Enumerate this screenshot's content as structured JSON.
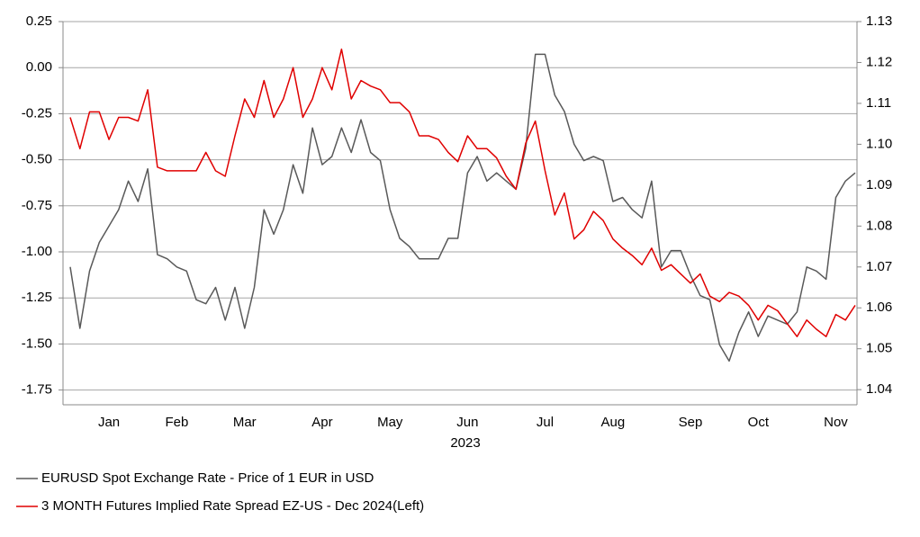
{
  "chart_data": {
    "type": "line",
    "categories": [
      null,
      null,
      null,
      null,
      "Jan",
      null,
      null,
      null,
      null,
      null,
      null,
      "Feb",
      null,
      null,
      null,
      null,
      null,
      null,
      "Mar",
      null,
      null,
      null,
      null,
      null,
      null,
      null,
      "Apr",
      null,
      null,
      null,
      null,
      null,
      null,
      "May",
      null,
      null,
      null,
      null,
      null,
      null,
      null,
      "Jun",
      null,
      null,
      null,
      null,
      null,
      null,
      null,
      "Jul",
      null,
      null,
      null,
      null,
      null,
      null,
      "Aug",
      null,
      null,
      null,
      null,
      null,
      null,
      null,
      "Sep",
      null,
      null,
      null,
      null,
      null,
      null,
      "Oct",
      null,
      null,
      null,
      null,
      null,
      null,
      null,
      "Nov",
      null,
      null
    ],
    "xlabel": "2023",
    "series": [
      {
        "name": "EURUSD Spot Exchange Rate - Price of 1 EUR in USD",
        "color": "#595959",
        "axis": "y2",
        "values": [
          1.07,
          1.055,
          1.069,
          1.076,
          1.08,
          1.084,
          1.091,
          1.086,
          1.094,
          1.073,
          1.072,
          1.07,
          1.069,
          1.062,
          1.061,
          1.065,
          1.057,
          1.065,
          1.055,
          1.065,
          1.084,
          1.078,
          1.084,
          1.095,
          1.088,
          1.104,
          1.095,
          1.097,
          1.104,
          1.098,
          1.106,
          1.098,
          1.096,
          1.084,
          1.077,
          1.075,
          1.072,
          1.072,
          1.072,
          1.077,
          1.077,
          1.093,
          1.097,
          1.091,
          1.093,
          1.091,
          1.089,
          1.099,
          1.122,
          1.122,
          1.112,
          1.108,
          1.1,
          1.096,
          1.097,
          1.096,
          1.086,
          1.087,
          1.084,
          1.082,
          1.091,
          1.07,
          1.074,
          1.074,
          1.068,
          1.063,
          1.062,
          1.051,
          1.047,
          1.054,
          1.059,
          1.053,
          1.058,
          1.057,
          1.056,
          1.059,
          1.07,
          1.069,
          1.067,
          1.087,
          1.091,
          1.093
        ]
      },
      {
        "name": "3 MONTH Futures Implied Rate Spread EZ-US - Dec 2024(Left)",
        "color": "#e00000",
        "axis": "y",
        "values": [
          -0.27,
          -0.44,
          -0.24,
          -0.24,
          -0.39,
          -0.27,
          -0.27,
          -0.29,
          -0.12,
          -0.54,
          -0.56,
          -0.56,
          -0.56,
          -0.56,
          -0.46,
          -0.56,
          -0.59,
          -0.37,
          -0.17,
          -0.27,
          -0.07,
          -0.27,
          -0.17,
          0.0,
          -0.27,
          -0.17,
          0.0,
          -0.12,
          0.1,
          -0.17,
          -0.07,
          -0.1,
          -0.12,
          -0.19,
          -0.19,
          -0.24,
          -0.37,
          -0.37,
          -0.39,
          -0.46,
          -0.51,
          -0.37,
          -0.44,
          -0.44,
          -0.49,
          -0.59,
          -0.66,
          -0.41,
          -0.29,
          -0.56,
          -0.8,
          -0.68,
          -0.93,
          -0.88,
          -0.78,
          -0.83,
          -0.93,
          -0.98,
          -1.02,
          -1.07,
          -0.98,
          -1.1,
          -1.07,
          -1.12,
          -1.17,
          -1.12,
          -1.24,
          -1.27,
          -1.22,
          -1.24,
          -1.29,
          -1.37,
          -1.29,
          -1.32,
          -1.39,
          -1.46,
          -1.37,
          -1.42,
          -1.46,
          -1.34,
          -1.37,
          -1.29
        ]
      }
    ],
    "ylim": [
      -1.83,
      0.25
    ],
    "yticks": [
      0.25,
      {
        "value": 0,
        "label": "0.00"
      },
      -0.25,
      {
        "value": -0.5,
        "label": "-0.50"
      },
      -0.75,
      {
        "value": -1,
        "label": "-1.00"
      },
      -1.25,
      {
        "value": -1.5,
        "label": "-1.50"
      },
      -1.75
    ],
    "y2lim": [
      1.0363,
      1.13
    ],
    "y2ticks": [
      1.13,
      1.12,
      1.11,
      {
        "value": 1.1,
        "label": "1.10"
      },
      1.09,
      1.08,
      1.07,
      1.06,
      1.05,
      1.04
    ],
    "grid": true
  }
}
